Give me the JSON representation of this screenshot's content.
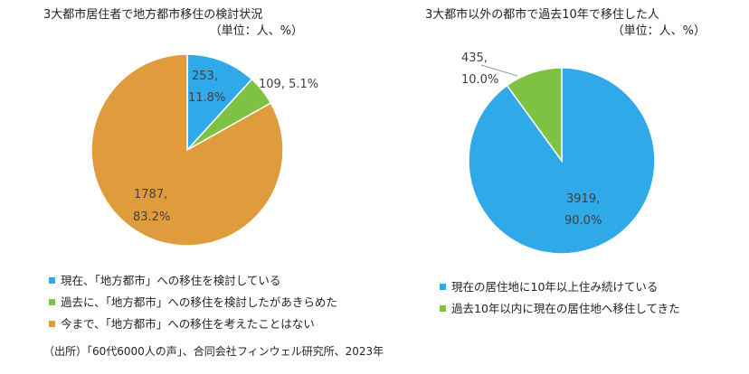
{
  "colors": {
    "blue": "#2FA9E8",
    "green": "#7DC242",
    "orange": "#E09C3C"
  },
  "chart_data": [
    {
      "type": "pie",
      "title": "3大都市居住者で地方都市移住の検討状況",
      "subtitle": "（単位：人、%）",
      "slices": [
        {
          "label": "現在、「地方都市」への移住を検討している",
          "value": 253,
          "percent": "11.8%",
          "color": "#2FA9E8",
          "value_text": "253,",
          "percent_text": "11.8%"
        },
        {
          "label": "過去に、「地方都市」への移住を検討したがあきらめた",
          "value": 109,
          "percent": "5.1%",
          "color": "#7DC242",
          "value_text": "109, 5.1%",
          "percent_text": ""
        },
        {
          "label": "今まで、「地方都市」への移住を考えたことはない",
          "value": 1787,
          "percent": "83.2%",
          "color": "#E09C3C",
          "value_text": "1787,",
          "percent_text": "83.2%"
        }
      ],
      "legend_position": "bottom"
    },
    {
      "type": "pie",
      "title": "3大都市以外の都市で過去10年で移住した人",
      "subtitle": "（単位：人、%）",
      "slices": [
        {
          "label": "現在の居住地に10年以上住み続けている",
          "value": 3919,
          "percent": "90.0%",
          "color": "#2FA9E8",
          "value_text": "3919,",
          "percent_text": "90.0%"
        },
        {
          "label": "過去10年以内に現在の居住地へ移住してきた",
          "value": 435,
          "percent": "10.0%",
          "color": "#7DC242",
          "value_text": "435,",
          "percent_text": "10.0%"
        }
      ],
      "legend_position": "bottom"
    }
  ],
  "source": "（出所）「60代6000人の声」、合同会社フィンウェル研究所、2023年"
}
